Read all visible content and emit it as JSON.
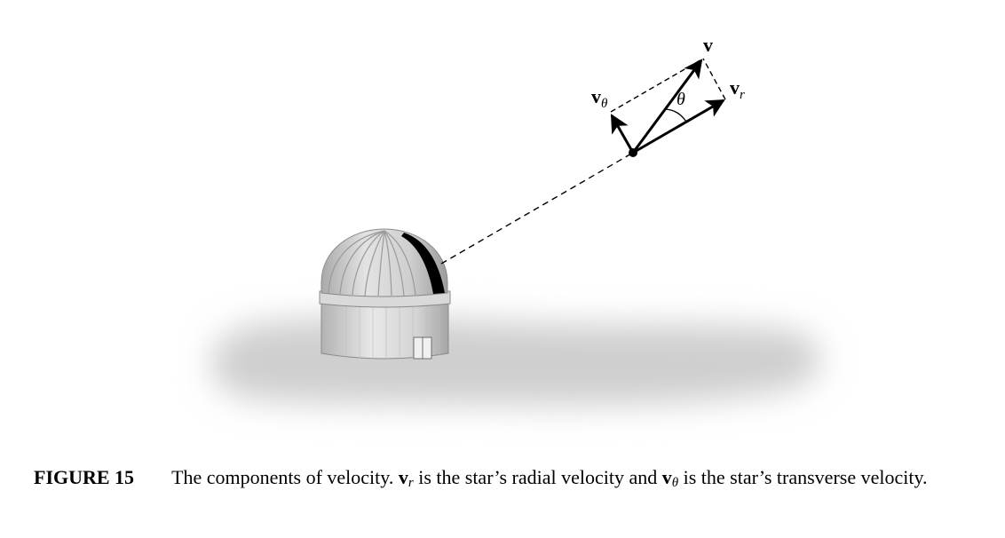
{
  "labels": {
    "v": "v",
    "v_r": "v",
    "v_r_sub": "r",
    "v_theta": "v",
    "v_theta_sub": "θ",
    "theta": "θ"
  },
  "caption": {
    "figure_number": "FIGURE 15",
    "part1": "The components of velocity.",
    "vr_symbol": "v",
    "vr_sub": "r",
    "part2": "is the star’s radial velocity and",
    "vtheta_symbol": "v",
    "vtheta_sub": "θ",
    "part3": "is the star’s transverse velocity."
  },
  "colors": {
    "dome": "#c8c8c8",
    "shadow": "#d2d2d2",
    "slit": "#000000",
    "ink": "#000000"
  }
}
